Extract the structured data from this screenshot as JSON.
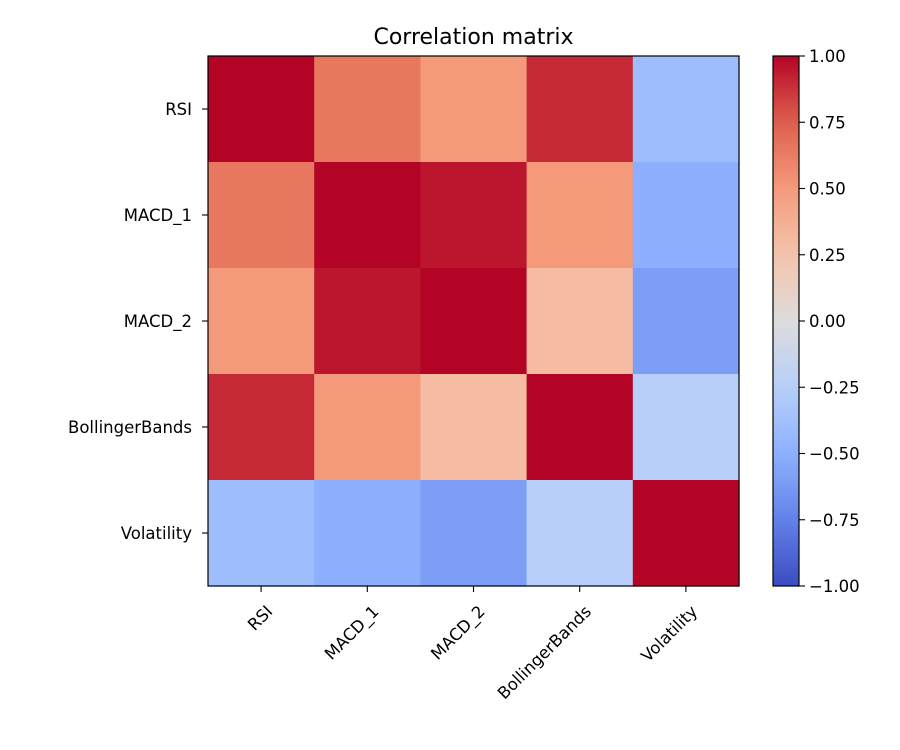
{
  "chart_data": {
    "type": "heatmap",
    "title": "Correlation matrix",
    "xlabel": "",
    "ylabel": "",
    "x_categories": [
      "RSI",
      "MACD_1",
      "MACD_2",
      "BollingerBands",
      "Volatility"
    ],
    "y_categories": [
      "RSI",
      "MACD_1",
      "MACD_2",
      "BollingerBands",
      "Volatility"
    ],
    "values": [
      [
        1.0,
        0.65,
        0.5,
        0.9,
        -0.4
      ],
      [
        0.65,
        1.0,
        0.95,
        0.5,
        -0.5
      ],
      [
        0.5,
        0.95,
        1.0,
        0.3,
        -0.6
      ],
      [
        0.9,
        0.5,
        0.3,
        1.0,
        -0.25
      ],
      [
        -0.4,
        -0.5,
        -0.6,
        -0.25,
        1.0
      ]
    ],
    "colormap": "coolwarm",
    "vmin": -1.0,
    "vmax": 1.0,
    "colorbar": {
      "ticks": [
        1.0,
        0.75,
        0.5,
        0.25,
        0.0,
        -0.25,
        -0.5,
        -0.75,
        -1.0
      ],
      "tick_labels": [
        "1.00",
        "0.75",
        "0.50",
        "0.25",
        "0.00",
        "−0.25",
        "−0.50",
        "−0.75",
        "−1.00"
      ]
    },
    "grid": false,
    "colors": {
      "low": "#3b4cc0",
      "mid": "#dddcdc",
      "high": "#b40426"
    }
  }
}
